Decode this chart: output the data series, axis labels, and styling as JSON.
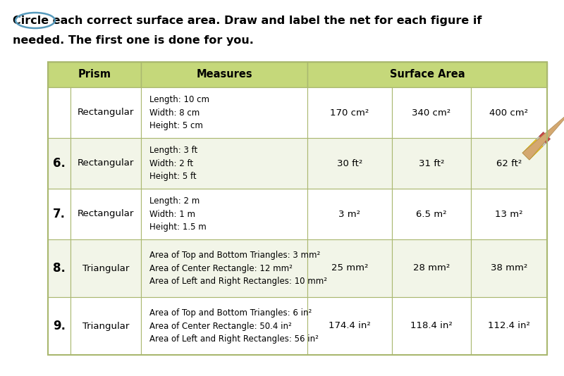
{
  "title_line1": "Circle each correct surface area. Draw and label the net for each figure if",
  "title_line2": "needed. The first one is done for you.",
  "header_bg": "#c5d87a",
  "row_bg_white": "#ffffff",
  "row_bg_tint": "#f2f5e8",
  "border_color": "#aab870",
  "rows": [
    {
      "number": "",
      "prism": "Rectangular",
      "measures": [
        "Length: 10 cm",
        "Width: 8 cm",
        "Height: 5 cm"
      ],
      "sa1": "170 cm²",
      "sa2": "340 cm²",
      "sa3": "400 cm²",
      "has_pencil": true
    },
    {
      "number": "6.",
      "prism": "Rectangular",
      "measures": [
        "Length: 3 ft",
        "Width: 2 ft",
        "Height: 5 ft"
      ],
      "sa1": "30 ft²",
      "sa2": "31 ft²",
      "sa3": "62 ft²",
      "has_pencil": false
    },
    {
      "number": "7.",
      "prism": "Rectangular",
      "measures": [
        "Length: 2 m",
        "Width: 1 m",
        "Height: 1.5 m"
      ],
      "sa1": "3 m²",
      "sa2": "6.5 m²",
      "sa3": "13 m²",
      "has_pencil": false
    },
    {
      "number": "8.",
      "prism": "Triangular",
      "measures": [
        "Area of Top and Bottom Triangles: 3 mm²",
        "Area of Center Rectangle: 12 mm²",
        "Area of Left and Right Rectangles: 10 mm²"
      ],
      "sa1": "25 mm²",
      "sa2": "28 mm²",
      "sa3": "38 mm²",
      "has_pencil": false
    },
    {
      "number": "9.",
      "prism": "Triangular",
      "measures": [
        "Area of Top and Bottom Triangles: 6 in²",
        "Area of Center Rectangle: 50.4 in²",
        "Area of Left and Right Rectangles: 56 in²"
      ],
      "sa1": "174.4 in²",
      "sa2": "118.4 in²",
      "sa3": "112.4 in²",
      "has_pencil": false
    }
  ],
  "bg_color": "#ffffff",
  "figsize": [
    8.0,
    5.34
  ],
  "dpi": 100
}
